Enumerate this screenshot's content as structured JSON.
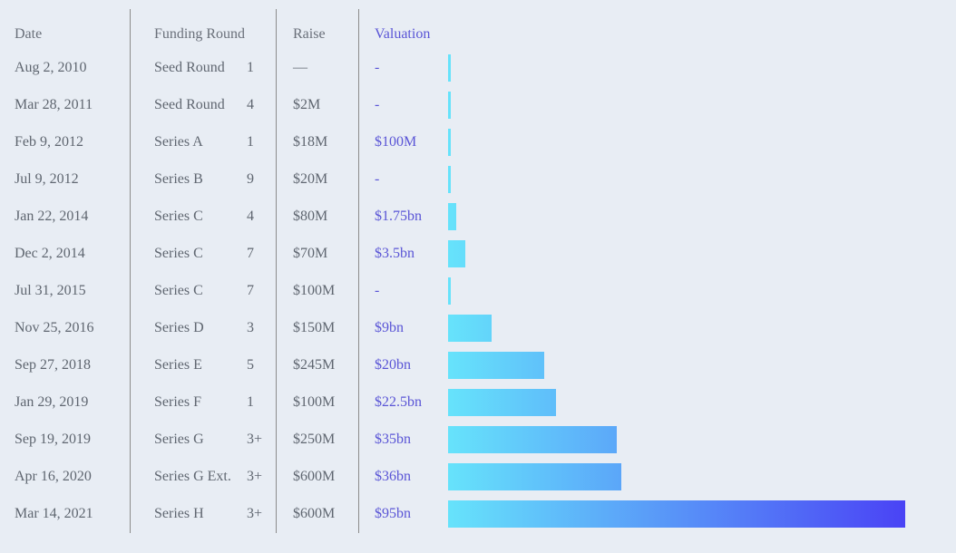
{
  "header": {
    "date": "Date",
    "round": "Funding Round",
    "raise": "Raise",
    "valuation": "Valuation"
  },
  "chart_data": {
    "type": "bar",
    "orientation": "horizontal",
    "value_unit": "bn",
    "xlim": [
      0,
      95
    ],
    "rows": [
      {
        "date": "Aug 2, 2010",
        "round": "Seed Round",
        "count": "1",
        "raise": "—",
        "valuation_label": "-",
        "valuation": 0.3
      },
      {
        "date": "Mar 28, 2011",
        "round": "Seed Round",
        "count": "4",
        "raise": "$2M",
        "valuation_label": "-",
        "valuation": 0.3
      },
      {
        "date": "Feb 9, 2012",
        "round": "Series A",
        "count": "1",
        "raise": "$18M",
        "valuation_label": "$100M",
        "valuation": 0.1
      },
      {
        "date": "Jul 9, 2012",
        "round": "Series B",
        "count": "9",
        "raise": "$20M",
        "valuation_label": "-",
        "valuation": 0.3
      },
      {
        "date": "Jan 22, 2014",
        "round": "Series C",
        "count": "4",
        "raise": "$80M",
        "valuation_label": "$1.75bn",
        "valuation": 1.75
      },
      {
        "date": "Dec 2, 2014",
        "round": "Series C",
        "count": "7",
        "raise": "$70M",
        "valuation_label": "$3.5bn",
        "valuation": 3.5
      },
      {
        "date": "Jul 31, 2015",
        "round": "Series C",
        "count": "7",
        "raise": "$100M",
        "valuation_label": "-",
        "valuation": 0.3
      },
      {
        "date": "Nov 25, 2016",
        "round": "Series D",
        "count": "3",
        "raise": "$150M",
        "valuation_label": "$9bn",
        "valuation": 9
      },
      {
        "date": "Sep 27, 2018",
        "round": "Series E",
        "count": "5",
        "raise": "$245M",
        "valuation_label": "$20bn",
        "valuation": 20
      },
      {
        "date": "Jan 29, 2019",
        "round": "Series F",
        "count": "1",
        "raise": "$100M",
        "valuation_label": "$22.5bn",
        "valuation": 22.5
      },
      {
        "date": "Sep 19, 2019",
        "round": "Series G",
        "count": "3+",
        "raise": "$250M",
        "valuation_label": "$35bn",
        "valuation": 35
      },
      {
        "date": "Apr 16, 2020",
        "round": "Series G Ext.",
        "count": "3+",
        "raise": "$600M",
        "valuation_label": "$36bn",
        "valuation": 36
      },
      {
        "date": "Mar 14, 2021",
        "round": "Series H",
        "count": "3+",
        "raise": "$600M",
        "valuation_label": "$95bn",
        "valuation": 95
      }
    ]
  },
  "colors": {
    "bar_start": "#66e3fb",
    "bar_end": "#4a43f5",
    "valuation_text": "#5a55d6"
  }
}
